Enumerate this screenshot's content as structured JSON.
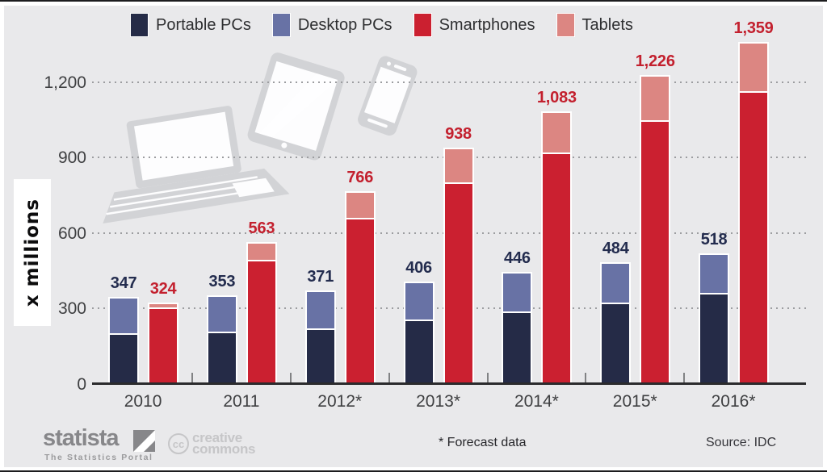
{
  "colors": {
    "panel_bg": "#e9e9eb",
    "axis": "#2b2b2d",
    "grid_dot": "#9c9da0",
    "device_gray": "#d2d3d6",
    "pc_label": "#232c4e",
    "mobile_label": "#c3202e"
  },
  "legend": {
    "items": [
      {
        "label": "Portable PCs",
        "color": "#252b47"
      },
      {
        "label": "Desktop PCs",
        "color": "#6872a5"
      },
      {
        "label": "Smartphones",
        "color": "#cb2030"
      },
      {
        "label": "Tablets",
        "color": "#dc8682"
      }
    ]
  },
  "chart_data": {
    "type": "bar",
    "stacked": true,
    "title": "",
    "unit_label": "x millions",
    "categories": [
      "2010",
      "2011",
      "2012*",
      "2013*",
      "2014*",
      "2015*",
      "2016*"
    ],
    "series": [
      {
        "name": "Portable PCs",
        "color": "#252b47",
        "stack": "pc",
        "values": [
          201,
          208,
          222,
          255,
          289,
          324,
          361
        ]
      },
      {
        "name": "Desktop PCs",
        "color": "#6872a5",
        "stack": "pc",
        "values": [
          146,
          145,
          149,
          151,
          157,
          160,
          157
        ]
      },
      {
        "name": "Smartphones",
        "color": "#cb2030",
        "stack": "mobile",
        "values": [
          306,
          494,
          661,
          800,
          920,
          1048,
          1164
        ]
      },
      {
        "name": "Tablets",
        "color": "#dc8682",
        "stack": "mobile",
        "values": [
          18,
          69,
          105,
          138,
          163,
          178,
          195
        ]
      }
    ],
    "stack_total_labels": {
      "pc": [
        "347",
        "353",
        "371",
        "406",
        "446",
        "484",
        "518"
      ],
      "mobile": [
        "324",
        "563",
        "766",
        "938",
        "1,083",
        "1,226",
        "1,359"
      ]
    },
    "y_axis": {
      "ticks": [
        {
          "label": "0",
          "value": 0
        },
        {
          "label": "300",
          "value": 300
        },
        {
          "label": "600",
          "value": 600
        },
        {
          "label": "900",
          "value": 900
        },
        {
          "label": "1,200",
          "value": 1200
        }
      ]
    },
    "ylim": [
      0,
      1300
    ],
    "grid": "horizontal-dotted",
    "legend_position": "top"
  },
  "footer": {
    "brand": "statista",
    "tagline": "The Statistics Portal",
    "cc_abbr": "cc",
    "cc_line1": "creative",
    "cc_line2": "commons",
    "forecast_note": "* Forecast data",
    "source": "Source: IDC"
  }
}
